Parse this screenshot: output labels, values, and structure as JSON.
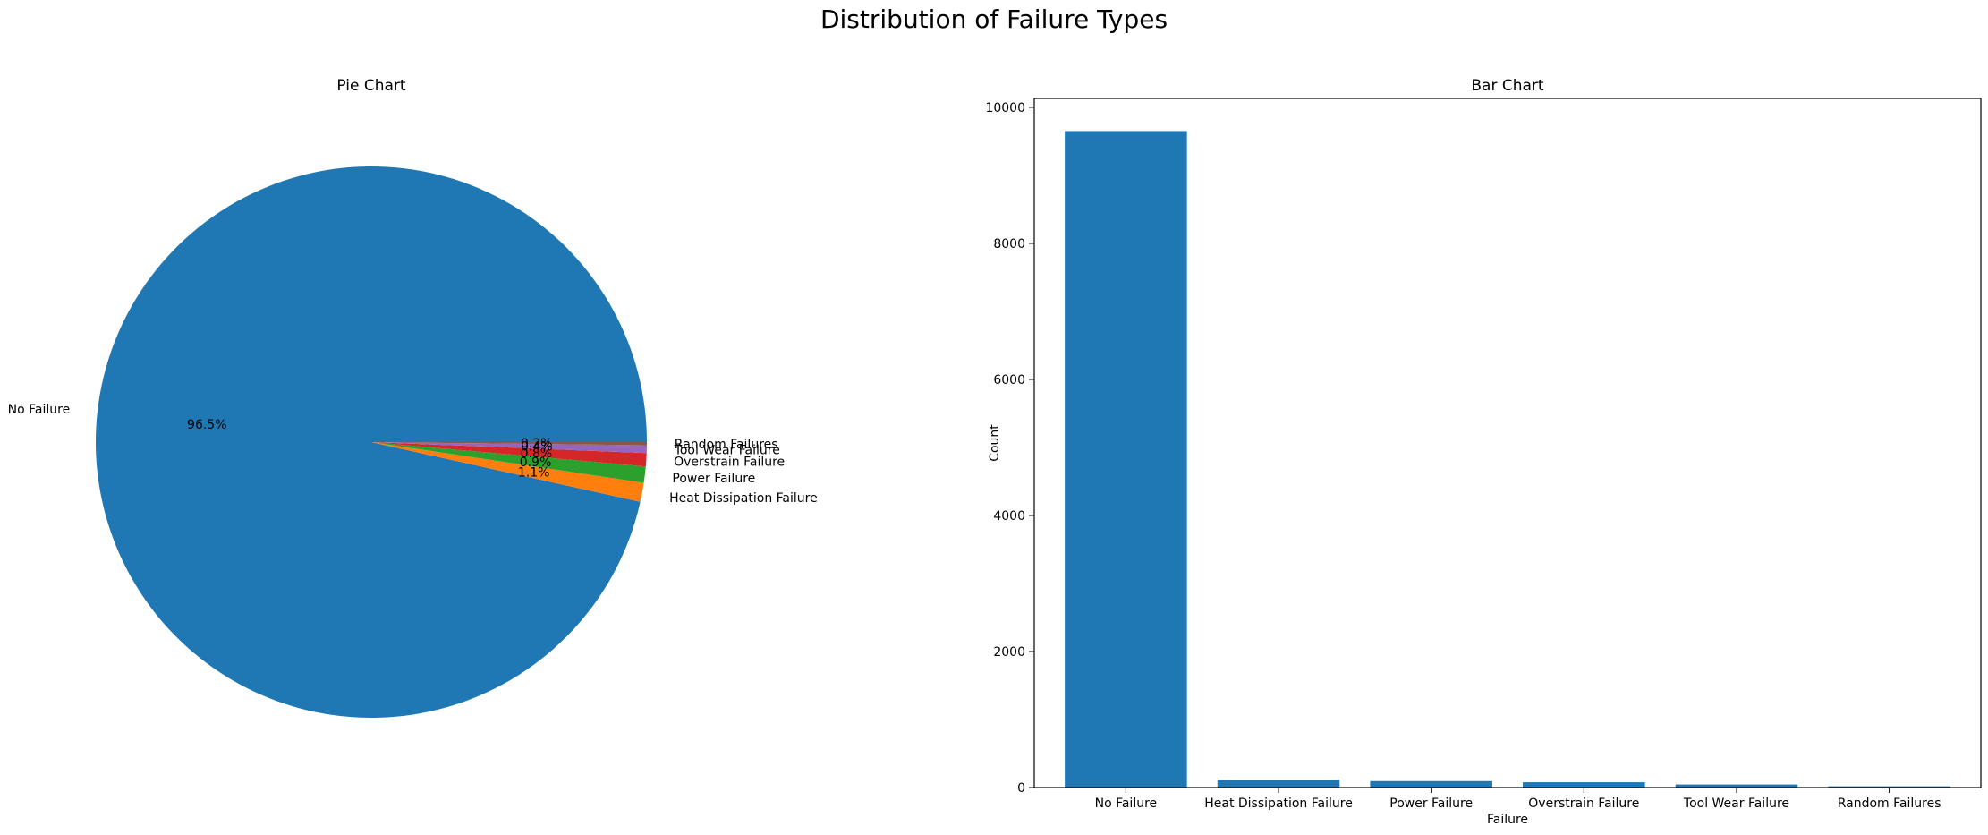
{
  "figure": {
    "suptitle": "Distribution of Failure Types"
  },
  "chart_data": [
    {
      "type": "pie",
      "title": "Pie Chart",
      "labels": [
        "No Failure",
        "Heat Dissipation Failure",
        "Power Failure",
        "Overstrain Failure",
        "Tool Wear Failure",
        "Random Failures"
      ],
      "values": [
        9652,
        112,
        95,
        78,
        45,
        18
      ],
      "pct_labels": [
        "96.5%",
        "1.1%",
        "0.9%",
        "0.8%",
        "0.4%",
        "0.2%"
      ],
      "colors": [
        "#1f77b4",
        "#ff7f0e",
        "#2ca02c",
        "#d62728",
        "#9467bd",
        "#8c564b"
      ]
    },
    {
      "type": "bar",
      "title": "Bar Chart",
      "categories": [
        "No Failure",
        "Heat Dissipation Failure",
        "Power Failure",
        "Overstrain Failure",
        "Tool Wear Failure",
        "Random Failures"
      ],
      "values": [
        9652,
        112,
        95,
        78,
        45,
        18
      ],
      "xlabel": "Failure",
      "ylabel": "Count",
      "ylim": [
        0,
        10131
      ],
      "yticks": [
        0,
        2000,
        4000,
        6000,
        8000,
        10000
      ],
      "color": "#1f77b4"
    }
  ]
}
